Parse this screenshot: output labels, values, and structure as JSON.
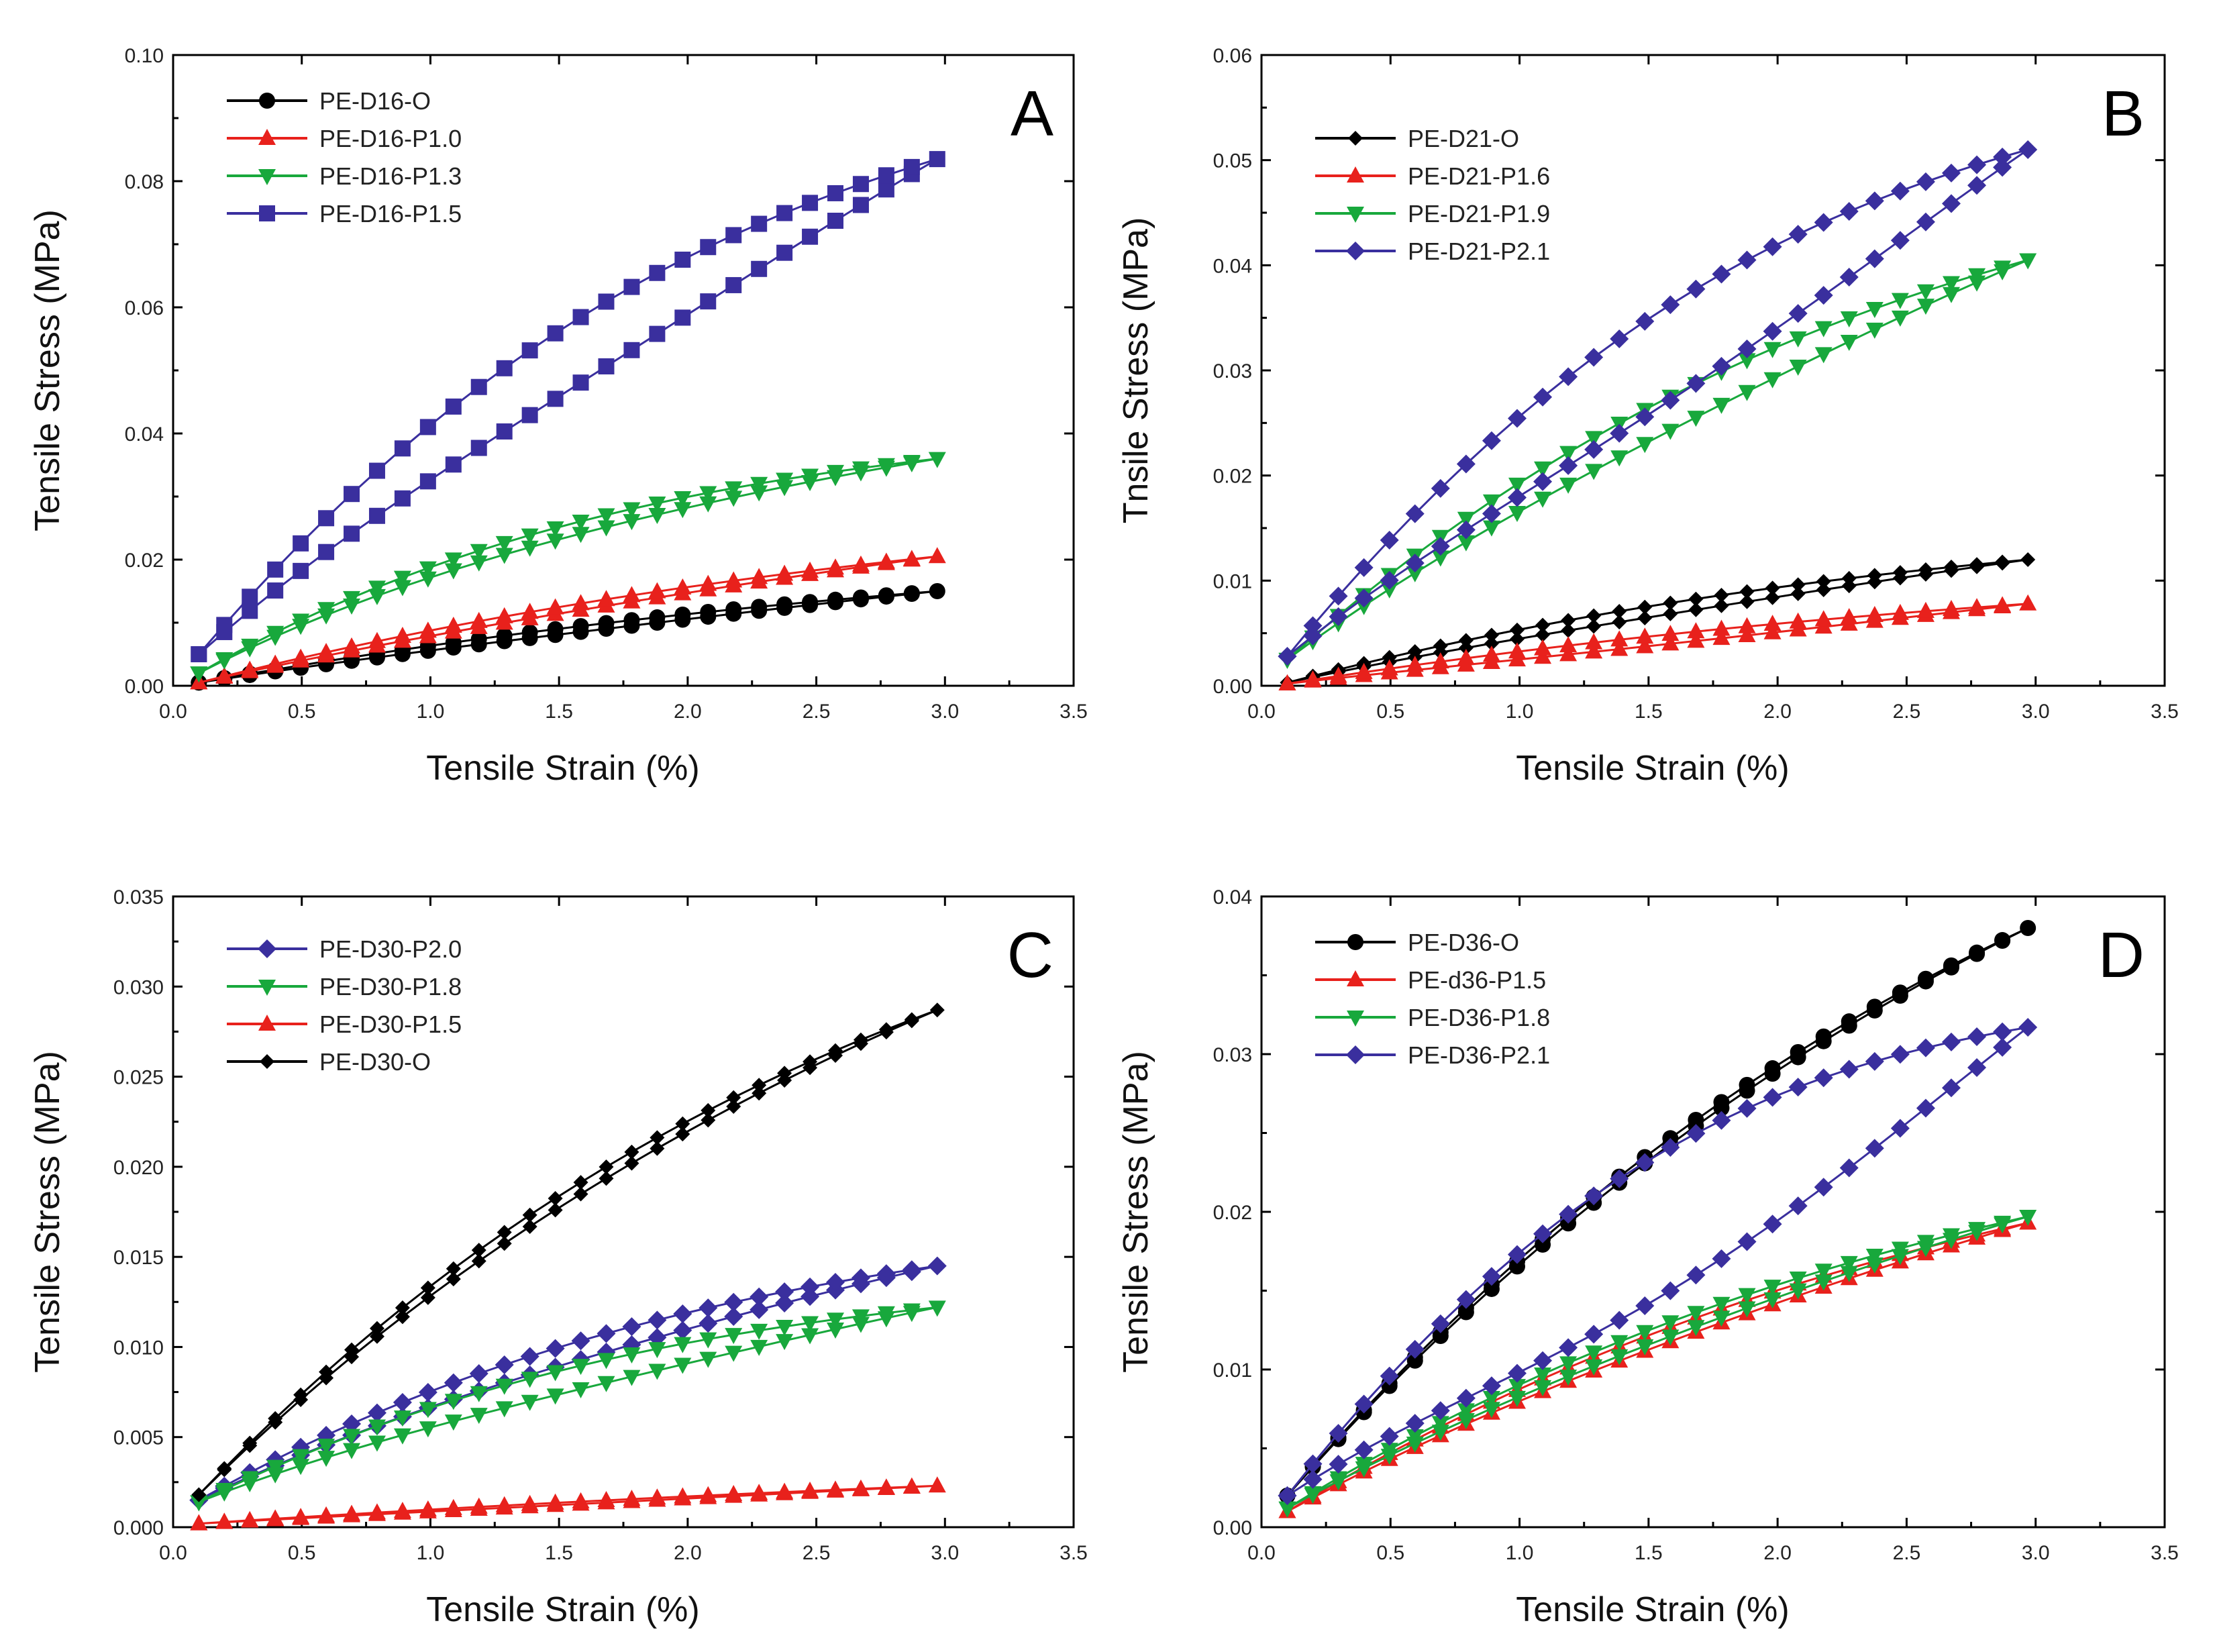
{
  "chart_data": [
    {
      "type": "line",
      "panel": "A",
      "xlabel": "Tensile Strain (%)",
      "ylabel": "Tensile Stress (MPa)",
      "xlim": [
        0.0,
        3.5
      ],
      "ylim": [
        0.0,
        0.1
      ],
      "xticks": [
        "0.0",
        "0.5",
        "1.0",
        "1.5",
        "2.0",
        "2.5",
        "3.0",
        "3.5"
      ],
      "yticks": [
        "0.00",
        "0.02",
        "0.04",
        "0.06",
        "0.08",
        "0.10"
      ],
      "legend_position": "top-left",
      "series": [
        {
          "name": "PE-D16-O",
          "color": "#000000",
          "marker": "circle",
          "ymax": 0.015,
          "yzero": 0.0005,
          "curv": 0.7,
          "hyst": 0.0007
        },
        {
          "name": "PE-D16-P1.0",
          "color": "#e8211c",
          "marker": "triangle-up",
          "ymax": 0.0205,
          "yzero": 0.0005,
          "curv": 0.8,
          "hyst": 0.0008
        },
        {
          "name": "PE-D16-P1.3",
          "color": "#18a83c",
          "marker": "triangle-down",
          "ymax": 0.036,
          "yzero": 0.002,
          "curv": 1.5,
          "hyst": 0.0015
        },
        {
          "name": "PE-D16-P1.5",
          "color": "#3a2f9e",
          "marker": "square",
          "ymax": 0.0835,
          "yzero": 0.005,
          "curv": 1.1,
          "hyst": 0.008
        }
      ]
    },
    {
      "type": "line",
      "panel": "B",
      "xlabel": "Tensile Strain (%)",
      "ylabel": "Tnsile Stress (MPa)",
      "xlim": [
        0.0,
        3.5
      ],
      "ylim": [
        0.0,
        0.06
      ],
      "xticks": [
        "0.0",
        "0.5",
        "1.0",
        "1.5",
        "2.0",
        "2.5",
        "3.0",
        "3.5"
      ],
      "yticks": [
        "0.00",
        "0.01",
        "0.02",
        "0.03",
        "0.04",
        "0.05",
        "0.06"
      ],
      "legend_position": "top-left",
      "series": [
        {
          "name": "PE-D21-O",
          "color": "#000000",
          "marker": "diamond-small",
          "ymax": 0.012,
          "yzero": 0.0003,
          "curv": 0.9,
          "hyst": 0.0008
        },
        {
          "name": "PE-D21-P1.6",
          "color": "#e8211c",
          "marker": "triangle-up",
          "ymax": 0.0078,
          "yzero": 0.0002,
          "curv": 0.6,
          "hyst": 0.0007
        },
        {
          "name": "PE-D21-P1.9",
          "color": "#18a83c",
          "marker": "triangle-down",
          "ymax": 0.0405,
          "yzero": 0.0025,
          "curv": 1.0,
          "hyst": 0.0025
        },
        {
          "name": "PE-D21-P2.1",
          "color": "#3a2f9e",
          "marker": "diamond",
          "ymax": 0.051,
          "yzero": 0.0028,
          "curv": 1.1,
          "hyst": 0.007
        }
      ]
    },
    {
      "type": "line",
      "panel": "C",
      "xlabel": "Tensile Strain (%)",
      "ylabel": "Tensile Stress (MPa)",
      "xlim": [
        0.0,
        3.5
      ],
      "ylim": [
        0.0,
        0.035
      ],
      "xticks": [
        "0.0",
        "0.5",
        "1.0",
        "1.5",
        "2.0",
        "2.5",
        "3.0",
        "3.5"
      ],
      "yticks": [
        "0.000",
        "0.005",
        "0.010",
        "0.015",
        "0.020",
        "0.025",
        "0.030",
        "0.035"
      ],
      "legend_position": "top-left",
      "series": [
        {
          "name": "PE-D30-P2.0",
          "color": "#3a2f9e",
          "marker": "diamond",
          "ymax": 0.0145,
          "yzero": 0.0015,
          "curv": 1.2,
          "hyst": 0.0008
        },
        {
          "name": "PE-D30-P1.8",
          "color": "#18a83c",
          "marker": "triangle-down",
          "ymax": 0.0122,
          "yzero": 0.0014,
          "curv": 1.3,
          "hyst": 0.001
        },
        {
          "name": "PE-D30-P1.5",
          "color": "#e8211c",
          "marker": "triangle-up",
          "ymax": 0.0023,
          "yzero": 0.0002,
          "curv": 0.4,
          "hyst": 0.0001
        },
        {
          "name": "PE-D30-O",
          "color": "#000000",
          "marker": "diamond-small",
          "ymax": 0.0287,
          "yzero": 0.0018,
          "curv": 1.0,
          "hyst": 0.0005
        }
      ]
    },
    {
      "type": "line",
      "panel": "D",
      "xlabel": "Tensile Strain (%)",
      "ylabel": "Tensile Stress (MPa)",
      "xlim": [
        0.0,
        3.5
      ],
      "ylim": [
        0.0,
        0.04
      ],
      "xticks": [
        "0.0",
        "0.5",
        "1.0",
        "1.5",
        "2.0",
        "2.5",
        "3.0",
        "3.5"
      ],
      "yticks": [
        "0.00",
        "0.01",
        "0.02",
        "0.03",
        "0.04"
      ],
      "legend_position": "top-left",
      "series": [
        {
          "name": "PE-D36-O",
          "color": "#000000",
          "marker": "circle",
          "ymax": 0.038,
          "yzero": 0.002,
          "curv": 0.9,
          "hyst": 0.0003
        },
        {
          "name": "PE-d36-P1.5",
          "color": "#e8211c",
          "marker": "triangle-up",
          "ymax": 0.0193,
          "yzero": 0.001,
          "curv": 0.9,
          "hyst": 0.0007
        },
        {
          "name": "PE-D36-P1.8",
          "color": "#18a83c",
          "marker": "triangle-down",
          "ymax": 0.0197,
          "yzero": 0.0012,
          "curv": 0.9,
          "hyst": 0.0007
        },
        {
          "name": "PE-D36-P2.1",
          "color": "#3a2f9e",
          "marker": "diamond",
          "ymax": 0.0317,
          "yzero": 0.002,
          "curv": 1.3,
          "hyst": 0.007
        }
      ]
    }
  ]
}
